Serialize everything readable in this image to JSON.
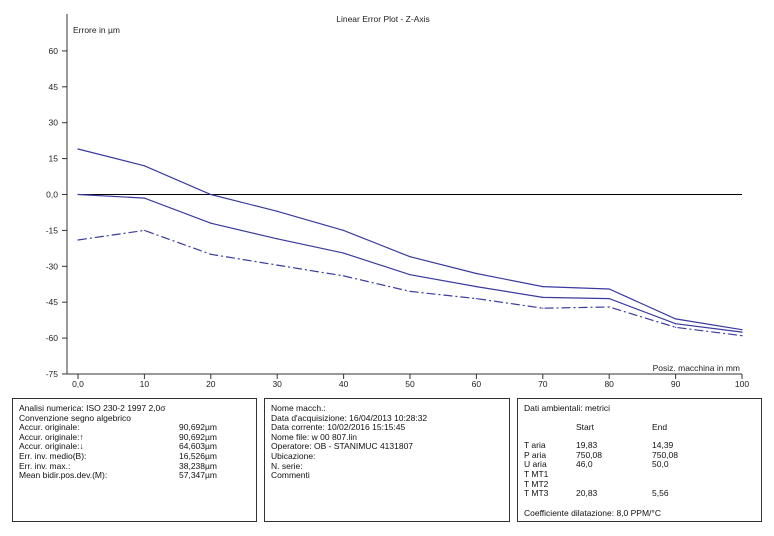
{
  "chart_data": {
    "type": "line",
    "title": "Linear Error Plot - Z-Axis",
    "ylabel": "Errore in µm",
    "xlabel": "Posiz. macchina in mm",
    "xlim": [
      0,
      100
    ],
    "ylim": [
      -75,
      70
    ],
    "y_ticks": [
      60,
      45,
      30,
      15,
      0,
      -15,
      -30,
      -45,
      -60,
      -75
    ],
    "y_tick_labels": [
      "60",
      "45",
      "30",
      "15",
      "0,0",
      "-15",
      "-30",
      "-45",
      "-60",
      "-75"
    ],
    "x_ticks": [
      0,
      10,
      20,
      30,
      40,
      50,
      60,
      70,
      80,
      90,
      100
    ],
    "x_tick_labels": [
      "0,0",
      "10",
      "20",
      "30",
      "40",
      "50",
      "60",
      "70",
      "80",
      "90",
      "100"
    ],
    "zero_line": true,
    "grid": false,
    "series": [
      {
        "style": "solid",
        "color": "#3a3a9e",
        "x": [
          0,
          10,
          20,
          30,
          40,
          50,
          60,
          70,
          80,
          90,
          100
        ],
        "y": [
          19,
          12,
          0,
          -7,
          -15,
          -26,
          -33,
          -38.5,
          -39.5,
          -52,
          -56.5
        ]
      },
      {
        "style": "solid",
        "color": "#3a3a9e",
        "x": [
          0,
          10,
          20,
          30,
          40,
          50,
          60,
          70,
          80,
          90,
          100
        ],
        "y": [
          0,
          -1.5,
          -12,
          -18.5,
          -24.5,
          -33.5,
          -38.5,
          -43,
          -43.5,
          -54,
          -57.5
        ]
      },
      {
        "style": "dashdot",
        "color": "#3a3a9e",
        "x": [
          0,
          10,
          20,
          30,
          40,
          50,
          60,
          70,
          80,
          90,
          100
        ],
        "y": [
          -19,
          -15,
          -25,
          -29.5,
          -34,
          -40.5,
          -43.5,
          -47.5,
          -47,
          -55.5,
          -59
        ]
      }
    ]
  },
  "analysis": {
    "rows": [
      {
        "label": "Analisi numerica: ISO 230-2 1997 2,0σ",
        "value": ""
      },
      {
        "label": "Convenzione segno algebrico",
        "value": ""
      },
      {
        "label": "Accur. originale:",
        "value": "90,692µm"
      },
      {
        "label": "Accur. originale:↑",
        "value": "90,692µm"
      },
      {
        "label": "Accur. originale:↓",
        "value": "64,603µm"
      },
      {
        "label": "Err. inv. medio(B):",
        "value": "16,526µm"
      },
      {
        "label": "Err. inv. max.:",
        "value": "38,238µm"
      },
      {
        "label": "Mean bidir.pos.dev.(M):",
        "value": "57,347µm"
      }
    ]
  },
  "machine": {
    "rows": [
      "Nome macch.:",
      "Data d'acquisizione: 16/04/2013 10:28:32",
      "Data corrente: 10/02/2016 15:15:45",
      "Nome file: w 00 807.lin",
      "Operatore: OB - STANIMUC 4131807",
      "Ubicazione:",
      "N. serie:",
      "Commenti"
    ]
  },
  "environment": {
    "title": "Dati ambientali: metrici",
    "col_start": "Start",
    "col_end": "End",
    "rows": [
      {
        "label": "T aria",
        "start": "19,83",
        "end": "14,39"
      },
      {
        "label": "P aria",
        "start": "750,08",
        "end": "750,08"
      },
      {
        "label": "U aria",
        "start": "46,0",
        "end": "50,0"
      },
      {
        "label": "T MT1",
        "start": "",
        "end": ""
      },
      {
        "label": "T MT2",
        "start": "",
        "end": ""
      },
      {
        "label": "T MT3",
        "start": "20,83",
        "end": "5,56"
      }
    ],
    "coefficient": "Coefficiente dilatazione: 8,0 PPM/°C"
  }
}
